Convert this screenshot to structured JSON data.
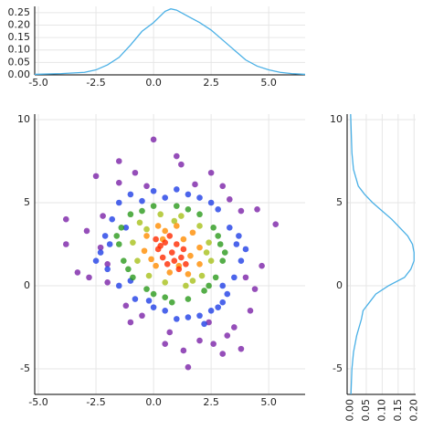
{
  "chart_data": [
    {
      "type": "line",
      "color": "#4ab0e6",
      "grid": true,
      "xlim": [
        -5.16,
        6.58
      ],
      "ylim": [
        0,
        0.275
      ],
      "xticks": [
        {
          "value": -5,
          "label": "-5.0"
        },
        {
          "value": -2.5,
          "label": "-2.5"
        },
        {
          "value": 0,
          "label": "0.0"
        },
        {
          "value": 2.5,
          "label": "2.5"
        },
        {
          "value": 5,
          "label": "5.0"
        }
      ],
      "yticks": [
        {
          "value": 0,
          "label": "0.00"
        },
        {
          "value": 0.05,
          "label": "0.05"
        },
        {
          "value": 0.1,
          "label": "0.10"
        },
        {
          "value": 0.15,
          "label": "0.15"
        },
        {
          "value": 0.2,
          "label": "0.20"
        },
        {
          "value": 0.25,
          "label": "0.25"
        }
      ],
      "x": [
        -5.16,
        -4,
        -3,
        -2.5,
        -2,
        -1.5,
        -1,
        -0.5,
        0,
        0.5,
        0.75,
        1,
        1.5,
        2,
        2.5,
        3,
        3.5,
        4,
        4.5,
        5,
        5.5,
        6,
        6.58
      ],
      "values": [
        0.002,
        0.005,
        0.01,
        0.02,
        0.04,
        0.07,
        0.12,
        0.175,
        0.21,
        0.255,
        0.265,
        0.26,
        0.235,
        0.21,
        0.18,
        0.14,
        0.1,
        0.06,
        0.035,
        0.02,
        0.01,
        0.005,
        0.002
      ]
    },
    {
      "type": "scatter",
      "grid": true,
      "xlim": [
        -5.16,
        6.58
      ],
      "ylim": [
        -6.54,
        10.33
      ],
      "xticks": [
        {
          "value": -5,
          "label": "-5.0"
        },
        {
          "value": -2.5,
          "label": "-2.5"
        },
        {
          "value": 0,
          "label": "0.0"
        },
        {
          "value": 2.5,
          "label": "2.5"
        },
        {
          "value": 5,
          "label": "5.0"
        }
      ],
      "yticks": [
        -5,
        0,
        5,
        10
      ],
      "series": [
        {
          "color": "#7b22a8",
          "x": [
            -3.8,
            -3.8,
            -3.3,
            -2.5,
            -2.3,
            -2.2,
            -2,
            -1.5,
            -1.5,
            -0.8,
            0,
            1,
            1.2,
            2.5,
            3,
            3.8,
            4.5,
            5.3,
            4.7,
            4.4,
            4.2,
            3.5,
            3.2,
            3.8,
            3,
            2,
            1.5,
            0.5,
            -0.5,
            -1,
            -1.2,
            -2,
            -2.8,
            0.7,
            2.4,
            4,
            -0.3,
            1.8,
            3.3,
            -2.9,
            2.6,
            1.3
          ],
          "values": [
            4,
            2.5,
            0.8,
            6.6,
            2.3,
            4.2,
            1.3,
            7.5,
            6.2,
            6.8,
            8.8,
            7.8,
            7.3,
            6.8,
            6,
            4.5,
            4.6,
            3.7,
            1.2,
            -0.2,
            -1.5,
            -2.5,
            -3,
            -3.8,
            -4.1,
            -3.3,
            -4.9,
            -3.5,
            -1.8,
            -2.2,
            -1.2,
            0.2,
            0.5,
            -2.8,
            -2.2,
            0.5,
            6,
            6.1,
            5.2,
            3.3,
            -3.5,
            -3.9
          ]
        },
        {
          "color": "#1f3ee6",
          "x": [
            -1.5,
            -1,
            0,
            1,
            2,
            2.8,
            3.3,
            3.6,
            3.8,
            3.5,
            3.2,
            2.8,
            2,
            1,
            0,
            -0.8,
            -1.5,
            -2,
            -2.3,
            -2.1,
            -1.8,
            -1.2,
            3,
            2.5,
            -0.5,
            0.5,
            1.5,
            2.5,
            3.7,
            -1,
            0.5,
            1.5,
            3,
            -1.9,
            4,
            -2.5,
            -0.2,
            2.2
          ],
          "values": [
            5,
            5.5,
            5.7,
            5.8,
            5.3,
            4.6,
            3.5,
            2.5,
            1.5,
            0.5,
            -0.5,
            -1.3,
            -1.8,
            -2,
            -1.3,
            -0.8,
            0,
            1,
            2,
            3,
            4,
            3.5,
            -1,
            -1.5,
            5.1,
            5.3,
            5.5,
            5,
            3,
            0.3,
            -1.5,
            -1.9,
            0,
            2.5,
            2.2,
            1.5,
            -0.9,
            -2.3
          ]
        },
        {
          "color": "#2b9a1c",
          "x": [
            -1,
            0,
            1,
            2,
            2.6,
            2.9,
            3,
            2.7,
            2.2,
            1.5,
            0.5,
            -0.3,
            -0.9,
            -1.3,
            -1.5,
            -1.4,
            -0.5,
            1.5,
            2.4,
            0.8,
            -1.1,
            3.1,
            2.8,
            -1.6,
            0
          ],
          "values": [
            4.3,
            4.8,
            4.8,
            4.3,
            3.5,
            2.5,
            1.5,
            0.5,
            -0.3,
            -0.8,
            -0.7,
            -0.2,
            0.5,
            1.5,
            2.5,
            3.5,
            4.5,
            4.6,
            0,
            -1,
            1,
            2,
            3,
            3,
            -0.5
          ]
        },
        {
          "color": "#a8c01a",
          "x": [
            -0.6,
            0.3,
            1.2,
            2,
            2.4,
            2.5,
            2.1,
            1.4,
            0.5,
            -0.2,
            -0.7,
            -0.9,
            1.7,
            -0.3,
            2.3,
            0.9
          ],
          "values": [
            3.8,
            4.3,
            4.2,
            3.6,
            2.6,
            1.5,
            0.6,
            0,
            0.2,
            0.6,
            1.5,
            2.6,
            0.3,
            3.4,
            2,
            3.9
          ]
        },
        {
          "color": "#ff8c00",
          "x": [
            -0.3,
            0.2,
            1,
            1.7,
            2,
            2,
            1.5,
            0.7,
            0.1,
            -0.4,
            0.4,
            1.3,
            1.6,
            -0.1,
            1.1,
            0.5
          ],
          "values": [
            3,
            3.6,
            3.6,
            3.2,
            2.3,
            1.3,
            0.7,
            0.8,
            1.2,
            2.1,
            2.8,
            2.8,
            1.8,
            1.6,
            1.2,
            3.3
          ]
        },
        {
          "color": "#ff2a00",
          "x": [
            0.2,
            0.5,
            0.8,
            1,
            1.2,
            0.4,
            0.7,
            0.1,
            1.3,
            0.9,
            0.3,
            1.1,
            0.6,
            1.4
          ],
          "values": [
            2.2,
            2.6,
            2,
            2.5,
            1.7,
            1.7,
            3,
            2.8,
            2.2,
            1.5,
            2.4,
            1,
            1.3,
            1.3
          ]
        }
      ]
    },
    {
      "type": "line",
      "orientation": "horizontal",
      "color": "#4ab0e6",
      "grid": true,
      "xlim": [
        -0.01,
        0.205
      ],
      "ylim": [
        -6.54,
        10.33
      ],
      "xticks": [
        {
          "value": 0,
          "label": "0.00"
        },
        {
          "value": 0.05,
          "label": "0.05"
        },
        {
          "value": 0.1,
          "label": "0.10"
        },
        {
          "value": 0.15,
          "label": "0.15"
        },
        {
          "value": 0.2,
          "label": "0.20"
        }
      ],
      "yticks": [
        -5,
        0,
        5,
        10
      ],
      "y": [
        -6.54,
        -5,
        -4,
        -3,
        -2,
        -1.5,
        -1,
        -0.5,
        0,
        0.5,
        1,
        1.5,
        2,
        2.5,
        3,
        3.5,
        4,
        4.5,
        5,
        5.5,
        6,
        7,
        8,
        10.33
      ],
      "values": [
        0.002,
        0.005,
        0.01,
        0.02,
        0.035,
        0.04,
        0.06,
        0.08,
        0.12,
        0.17,
        0.19,
        0.2,
        0.2,
        0.195,
        0.18,
        0.155,
        0.13,
        0.1,
        0.07,
        0.045,
        0.025,
        0.01,
        0.005,
        0.001
      ]
    }
  ]
}
